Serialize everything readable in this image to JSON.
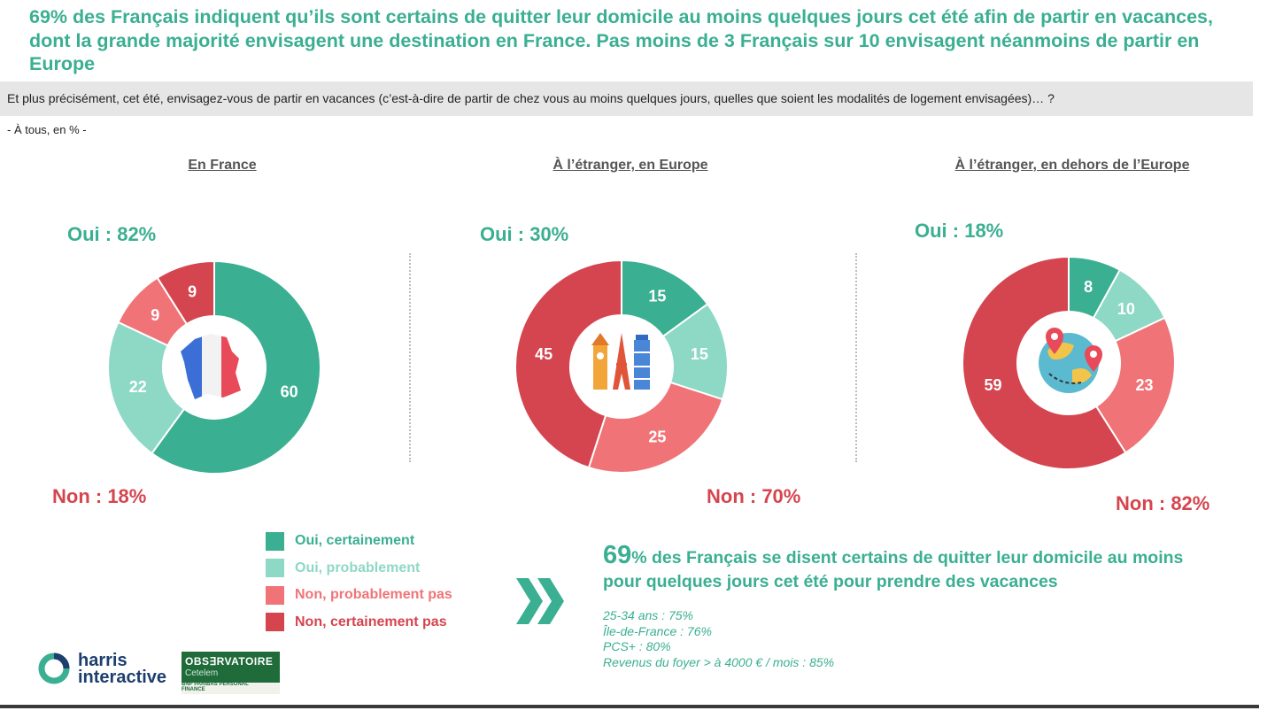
{
  "headline": "69% des Français indiquent qu’ils sont certains de quitter leur domicile au moins quelques jours cet été afin de partir en vacances, dont la grande majorité envisagent une destination en France. Pas moins de 3 Français sur 10 envisagent néanmoins de partir en Europe",
  "question": "Et plus précisément, cet été, envisagez-vous de partir en vacances (c’est-à-dire de partir de chez vous au moins quelques jours, quelles que soient les modalités de logement envisagées)… ?",
  "base": "- À tous, en % -",
  "colors": {
    "oui_certainement": "#3aaf92",
    "oui_probablement": "#8ed8c6",
    "non_probablement_pas": "#f07477",
    "non_certainement_pas": "#d5454f"
  },
  "chart_data": [
    {
      "type": "pie",
      "title": "En France",
      "categories": [
        "Oui, certainement",
        "Oui, probablement",
        "Non, probablement pas",
        "Non, certainement pas"
      ],
      "values": [
        60,
        22,
        9,
        9
      ],
      "oui_label": "Oui : 82%",
      "non_label": "Non : 18%",
      "icon": "france-map-icon"
    },
    {
      "type": "pie",
      "title": "À l’étranger, en Europe",
      "categories": [
        "Oui, certainement",
        "Oui, probablement",
        "Non, probablement pas",
        "Non, certainement pas"
      ],
      "values": [
        15,
        15,
        25,
        45
      ],
      "oui_label": "Oui : 30%",
      "non_label": "Non : 70%",
      "icon": "european-monuments-icon"
    },
    {
      "type": "pie",
      "title": "À l’étranger, en dehors de l’Europe",
      "categories": [
        "Oui, certainement",
        "Oui, probablement",
        "Non, probablement pas",
        "Non, certainement pas"
      ],
      "values": [
        8,
        10,
        23,
        59
      ],
      "oui_label": "Oui : 18%",
      "non_label": "Non : 82%",
      "icon": "globe-travel-icon"
    }
  ],
  "legend": [
    "Oui, certainement",
    "Oui, probablement",
    "Non, probablement pas",
    "Non, certainement pas"
  ],
  "callout": {
    "number": "69",
    "text": "% des Français se disent certains de quitter leur domicile au moins pour quelques jours cet été pour prendre des vacances",
    "details": [
      "25-34 ans : 75%",
      "Île-de-France : 76%",
      "PCS+ : 80%",
      "Revenus du foyer > à 4000 € / mois : 85%"
    ]
  },
  "logos": {
    "harris_line1": "harris",
    "harris_line2": "interactive",
    "observatoire_title": "OBS∃RVATOIRE",
    "observatoire_sub": "Cetelem",
    "observatoire_bnp": "BNP PARIBAS PERSONAL FINANCE"
  }
}
